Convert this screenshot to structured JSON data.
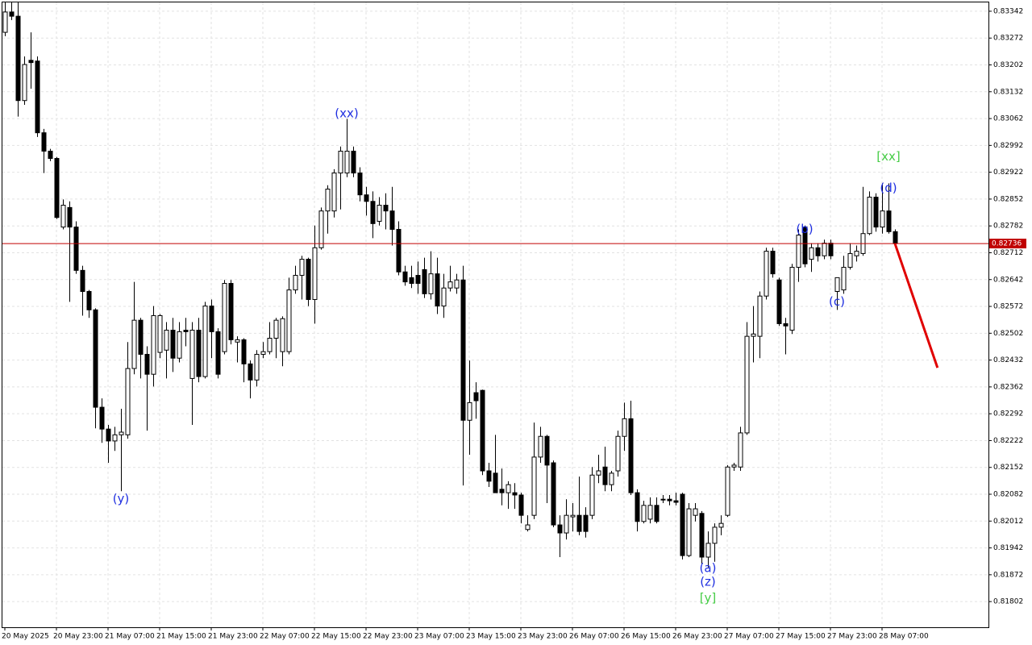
{
  "chart_data": {
    "type": "candlestick",
    "categories": [
      "20 May 2025",
      null,
      null,
      null,
      null,
      null,
      null,
      null,
      "20 May 23:00",
      null,
      null,
      null,
      null,
      null,
      null,
      null,
      "21 May 07:00",
      null,
      null,
      null,
      null,
      null,
      null,
      null,
      "21 May 15:00",
      null,
      null,
      null,
      null,
      null,
      null,
      null,
      "21 May 23:00",
      null,
      null,
      null,
      null,
      null,
      null,
      null,
      "22 May 07:00",
      null,
      null,
      null,
      null,
      null,
      null,
      null,
      "22 May 15:00",
      null,
      null,
      null,
      null,
      null,
      null,
      null,
      "22 May 23:00",
      null,
      null,
      null,
      null,
      null,
      null,
      null,
      "23 May 07:00",
      null,
      null,
      null,
      null,
      null,
      null,
      null,
      "23 May 15:00",
      null,
      null,
      null,
      null,
      null,
      null,
      null,
      "23 May 23:00",
      null,
      null,
      null,
      null,
      null,
      null,
      null,
      "26 May 07:00",
      null,
      null,
      null,
      null,
      null,
      null,
      null,
      "26 May 15:00",
      null,
      null,
      null,
      null,
      null,
      null,
      null,
      "26 May 23:00",
      null,
      null,
      null,
      null,
      null,
      null,
      null,
      "27 May 07:00",
      null,
      null,
      null,
      null,
      null,
      null,
      null,
      "27 May 15:00",
      null,
      null,
      null,
      null,
      null,
      null,
      null,
      "27 May 23:00",
      null,
      null,
      null,
      null,
      null,
      null,
      null,
      "28 May 07:00",
      null,
      null
    ],
    "open": [
      0.83287,
      0.8334,
      0.83329,
      0.83109,
      0.83214,
      0.83212,
      0.83025,
      0.82977,
      0.82958,
      0.82779,
      0.8283,
      0.82779,
      0.82666,
      0.82611,
      0.82563,
      0.82309,
      0.82252,
      0.82221,
      0.82237,
      0.82237,
      0.8241,
      0.82536,
      0.82447,
      0.82395,
      0.82452,
      0.82458,
      0.8251,
      0.82437,
      0.8251,
      0.82384,
      0.8251,
      0.82389,
      0.82573,
      0.82506,
      0.82454,
      0.82632,
      0.82479,
      0.82485,
      0.82422,
      0.8238,
      0.82447,
      0.82454,
      0.82489,
      0.82454,
      0.82454,
      0.82615,
      0.82653,
      0.82695,
      0.8259,
      0.82725,
      0.82821,
      0.82821,
      0.8292,
      0.8292,
      0.82977,
      0.8292,
      0.82863,
      0.82846,
      0.82794,
      0.82836,
      0.82821,
      0.82773,
      0.82662,
      0.82647,
      0.82653,
      0.82668,
      0.82605,
      0.82657,
      0.82573,
      0.8262,
      0.8262,
      0.82641,
      0.82275,
      0.82347,
      0.82353,
      0.82143,
      0.82137,
      0.82095,
      0.82086,
      0.82086,
      0.8208,
      0.8199,
      0.82027,
      0.82179,
      0.82233,
      0.82164,
      0.82002,
      0.81981,
      0.82023,
      0.82027,
      0.82027,
      0.82027,
      0.82132,
      0.82153,
      0.82107,
      0.82143,
      0.82233,
      0.82279,
      0.82086,
      0.82011,
      0.82017,
      0.82053,
      0.82069,
      0.82069,
      0.82065,
      0.82082,
      0.81922,
      0.82027,
      0.82032,
      0.81918,
      0.81954,
      0.81996,
      0.82027,
      0.82153,
      0.82153,
      0.82242,
      0.82494,
      0.82494,
      0.82599,
      0.82716,
      0.82641,
      0.82527,
      0.8251,
      0.82674,
      0.82779,
      0.82695,
      0.82725,
      0.82704,
      0.82737,
      0.82611,
      0.82615,
      0.82674,
      0.82704,
      0.8271,
      0.82762,
      0.82857,
      0.82779,
      0.82821,
      0.82767
    ],
    "high": [
      0.83365,
      0.83365,
      0.83365,
      0.83224,
      0.83287,
      0.83224,
      0.83035,
      0.82983,
      0.82962,
      0.82851,
      0.82846,
      0.82794,
      0.82678,
      0.82615,
      0.82567,
      0.82332,
      0.82263,
      0.82258,
      0.82305,
      0.82479,
      0.82636,
      0.82542,
      0.82468,
      0.82573,
      0.82552,
      0.82531,
      0.82542,
      0.82531,
      0.82542,
      0.82531,
      0.82542,
      0.82584,
      0.8259,
      0.82515,
      0.82641,
      0.82641,
      0.82494,
      0.82489,
      0.82431,
      0.82458,
      0.82479,
      0.82531,
      0.82542,
      0.82546,
      0.82647,
      0.82678,
      0.82704,
      0.82699,
      0.82783,
      0.8283,
      0.82888,
      0.8293,
      0.82989,
      0.83061,
      0.82989,
      0.82935,
      0.82884,
      0.82872,
      0.82857,
      0.82867,
      0.82884,
      0.82794,
      0.82678,
      0.82678,
      0.82689,
      0.82699,
      0.82716,
      0.82699,
      0.82657,
      0.82678,
      0.82657,
      0.82678,
      0.82431,
      0.82374,
      0.82355,
      0.82164,
      0.82237,
      0.82149,
      0.82116,
      0.82111,
      0.82086,
      0.82027,
      0.82269,
      0.82258,
      0.82237,
      0.8217,
      0.82027,
      0.82069,
      0.82059,
      0.82128,
      0.82048,
      0.82153,
      0.82185,
      0.82206,
      0.82143,
      0.82248,
      0.82321,
      0.82326,
      0.82095,
      0.82065,
      0.82074,
      0.82074,
      0.8208,
      0.8208,
      0.82086,
      0.82086,
      0.82059,
      0.82059,
      0.82038,
      0.81985,
      0.82006,
      0.82027,
      0.82158,
      0.82164,
      0.82258,
      0.82531,
      0.82573,
      0.82611,
      0.82725,
      0.82725,
      0.82647,
      0.82542,
      0.82683,
      0.82773,
      0.82783,
      0.82737,
      0.82737,
      0.82746,
      0.82746,
      0.82647,
      0.82704,
      0.82737,
      0.82731,
      0.82884,
      0.82872,
      0.82867,
      0.82893,
      0.82893,
      0.82773
    ],
    "low": [
      0.83277,
      0.83319,
      0.83067,
      0.83098,
      0.8314,
      0.83014,
      0.8292,
      0.82951,
      0.828,
      0.82773,
      0.82584,
      0.82657,
      0.82548,
      0.82542,
      0.82254,
      0.82216,
      0.82164,
      0.82195,
      0.8209,
      0.82227,
      0.82395,
      0.82384,
      0.82248,
      0.82363,
      0.82437,
      0.82384,
      0.82401,
      0.82426,
      0.82468,
      0.82263,
      0.82374,
      0.82384,
      0.82437,
      0.82384,
      0.82447,
      0.82473,
      0.82426,
      0.82374,
      0.82332,
      0.82363,
      0.82437,
      0.82447,
      0.82437,
      0.82416,
      0.82447,
      0.82605,
      0.8259,
      0.82573,
      0.82527,
      0.8272,
      0.82762,
      0.82804,
      0.82825,
      0.82909,
      0.82909,
      0.82846,
      0.82809,
      0.8275,
      0.82783,
      0.82773,
      0.82731,
      0.82653,
      0.82626,
      0.8262,
      0.82605,
      0.82594,
      0.8259,
      0.82552,
      0.82542,
      0.82611,
      0.82605,
      0.82105,
      0.82185,
      0.82279,
      0.82132,
      0.82101,
      0.82086,
      0.82053,
      0.82044,
      0.82044,
      0.82006,
      0.81985,
      0.82017,
      0.82164,
      0.82059,
      0.81996,
      0.81918,
      0.81964,
      0.81985,
      0.81975,
      0.81969,
      0.82017,
      0.82111,
      0.8209,
      0.8209,
      0.82128,
      0.82195,
      0.8208,
      0.81985,
      0.82006,
      0.82006,
      0.82006,
      0.82059,
      0.82053,
      0.82053,
      0.81912,
      0.81918,
      0.82011,
      0.81901,
      0.81891,
      0.81906,
      0.81975,
      0.82023,
      0.82143,
      0.82143,
      0.82237,
      0.82426,
      0.82437,
      0.8259,
      0.82647,
      0.82521,
      0.82447,
      0.825,
      0.82636,
      0.82674,
      0.82662,
      0.82689,
      0.82695,
      0.82695,
      0.82563,
      0.82605,
      0.82668,
      0.82689,
      0.82704,
      0.82758,
      0.82767,
      0.82762,
      0.82762,
      0.82731
    ],
    "close": [
      0.8334,
      0.83329,
      0.83109,
      0.83203,
      0.83208,
      0.83025,
      0.82977,
      0.82958,
      0.82804,
      0.82836,
      0.82779,
      0.82666,
      0.82611,
      0.82563,
      0.82309,
      0.82252,
      0.82221,
      0.82237,
      0.82244,
      0.8241,
      0.82536,
      0.82447,
      0.82395,
      0.82548,
      0.82548,
      0.8251,
      0.82437,
      0.82506,
      0.82506,
      0.8251,
      0.82389,
      0.82573,
      0.82506,
      0.82395,
      0.82632,
      0.82485,
      0.82485,
      0.82422,
      0.8238,
      0.82447,
      0.82454,
      0.82489,
      0.82536,
      0.8254,
      0.82615,
      0.82653,
      0.82695,
      0.8259,
      0.82725,
      0.82821,
      0.82878,
      0.8292,
      0.82977,
      0.82977,
      0.8292,
      0.82863,
      0.82846,
      0.82788,
      0.82836,
      0.82821,
      0.82773,
      0.82662,
      0.82636,
      0.82632,
      0.82632,
      0.82605,
      0.82657,
      0.82573,
      0.8262,
      0.82636,
      0.82641,
      0.82275,
      0.82321,
      0.82326,
      0.82143,
      0.82116,
      0.82086,
      0.82086,
      0.82107,
      0.8208,
      0.82027,
      0.82002,
      0.82179,
      0.82233,
      0.82158,
      0.82002,
      0.81981,
      0.82027,
      0.82027,
      0.81985,
      0.81985,
      0.82132,
      0.82143,
      0.82107,
      0.82137,
      0.82233,
      0.82279,
      0.82086,
      0.82011,
      0.82053,
      0.82053,
      0.82011,
      0.82069,
      0.82065,
      0.82061,
      0.81922,
      0.82044,
      0.82044,
      0.81918,
      0.81954,
      0.81996,
      0.82006,
      0.82153,
      0.82158,
      0.82242,
      0.82494,
      0.825,
      0.82599,
      0.82716,
      0.82657,
      0.82527,
      0.82521,
      0.82674,
      0.82758,
      0.82683,
      0.82725,
      0.82704,
      0.82737,
      0.82704,
      0.82647,
      0.82674,
      0.8271,
      0.82716,
      0.82762,
      0.82857,
      0.82779,
      0.82821,
      0.82767,
      0.82736
    ],
    "up_color": "#ffffff",
    "down_color": "#000000",
    "ylim": [
      0.81735,
      0.83365
    ],
    "yticks": [
      0.83342,
      0.83272,
      0.83202,
      0.83132,
      0.83062,
      0.82992,
      0.82922,
      0.82852,
      0.82782,
      0.82712,
      0.82642,
      0.82572,
      0.82502,
      0.82432,
      0.82362,
      0.82292,
      0.82222,
      0.82152,
      0.82082,
      0.82012,
      0.81942,
      0.81872,
      0.81802
    ],
    "grid": true,
    "grid_color": "#e2e2e2",
    "current_price": 0.82736,
    "price_line_color": "#c00000",
    "annotations": [
      {
        "text": "(y)",
        "at": 18,
        "price": 0.82069,
        "color": "#1f2fe0"
      },
      {
        "text": "(xx)",
        "at": 53,
        "price": 0.83075,
        "color": "#1f2fe0"
      },
      {
        "text": "[xx]",
        "at": 137,
        "price": 0.82962,
        "color": "#44cc44"
      },
      {
        "text": "(d)",
        "at": 137,
        "price": 0.8288,
        "color": "#1f2fe0"
      },
      {
        "text": "(b)",
        "at": 124,
        "price": 0.82773,
        "color": "#1f2fe0"
      },
      {
        "text": "(c)",
        "at": 129,
        "price": 0.82584,
        "color": "#1f2fe0"
      },
      {
        "text": "(a)",
        "at": 109,
        "price": 0.81889,
        "color": "#1f2fe0"
      },
      {
        "text": "(z)",
        "at": 109,
        "price": 0.81853,
        "color": "#1f2fe0"
      },
      {
        "text": "[y]",
        "at": 109,
        "price": 0.81811,
        "color": "#44cc44"
      }
    ],
    "projection": {
      "from": [
        138,
        0.82736
      ],
      "to": [
        144.6,
        0.82412
      ],
      "color": "#e00000"
    }
  }
}
